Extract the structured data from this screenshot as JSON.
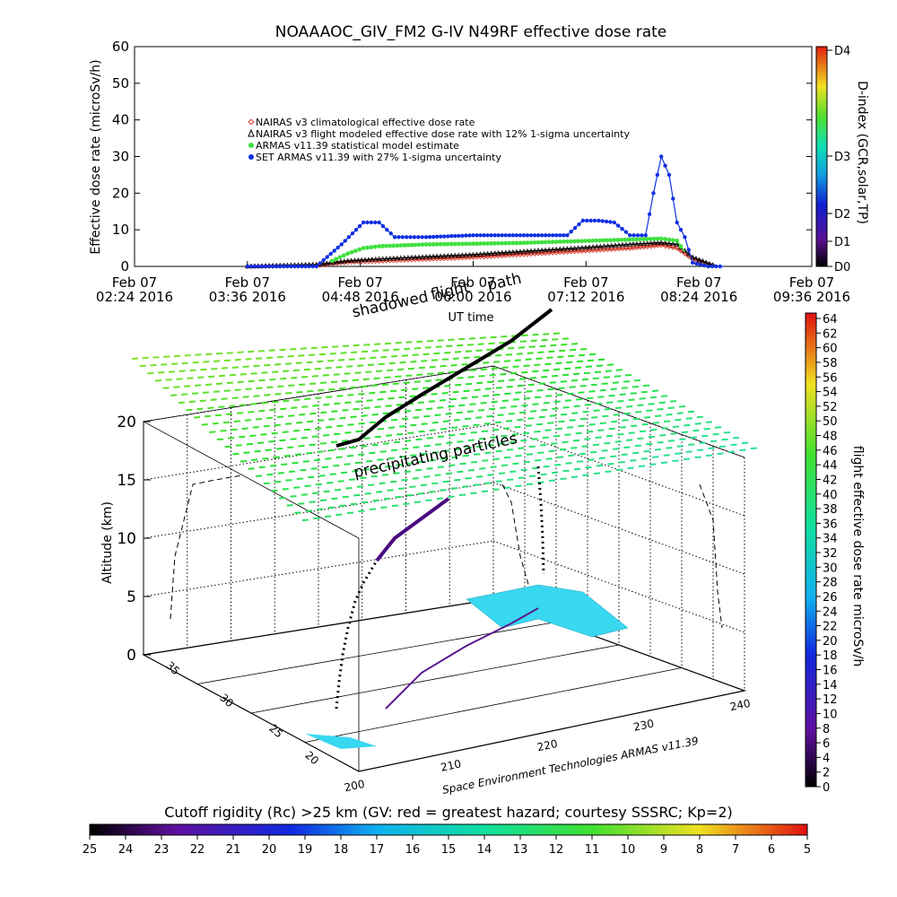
{
  "title": "NOAAAOC_GIV_FM2 G-IV   N49RF  effective dose rate",
  "colors": {
    "nairas_clim": "#d03020",
    "nairas_model": "#000000",
    "armas_stat": "#40e040",
    "set_armas": "#1030e0",
    "curtain": "#000000"
  },
  "chart_data": [
    {
      "type": "scatter",
      "ylabel": "Effective dose rate (microSv/h)",
      "xlabel": "UT time",
      "ylim": [
        0,
        60
      ],
      "yticks": [
        0,
        10,
        20,
        30,
        40,
        50,
        60
      ],
      "xlim": [
        "2016-02-07 02:24",
        "2016-02-07 09:36"
      ],
      "xticks": [
        {
          "t": "2016-02-07 02:24",
          "l1": "Feb 07",
          "l2": "02:24 2016"
        },
        {
          "t": "2016-02-07 03:36",
          "l1": "Feb 07",
          "l2": "03:36 2016"
        },
        {
          "t": "2016-02-07 04:48",
          "l1": "Feb 07",
          "l2": "04:48 2016"
        },
        {
          "t": "2016-02-07 06:00",
          "l1": "Feb 07",
          "l2": "06:00 2016"
        },
        {
          "t": "2016-02-07 07:12",
          "l1": "Feb 07",
          "l2": "07:12 2016"
        },
        {
          "t": "2016-02-07 08:24",
          "l1": "Feb 07",
          "l2": "08:24 2016"
        },
        {
          "t": "2016-02-07 09:36",
          "l1": "Feb 07",
          "l2": "09:36 2016"
        }
      ],
      "legend": [
        {
          "marker": "diamond",
          "label": "NAIRAS v3 climatological effective dose rate"
        },
        {
          "marker": "triangle",
          "label": "NAIRAS v3 flight modeled effective dose rate with 12% 1-sigma uncertainty"
        },
        {
          "marker": "star",
          "label": "ARMAS v11.39 statistical model estimate"
        },
        {
          "marker": "circle",
          "label": "SET ARMAS v11.39 with 27% 1-sigma uncertainty"
        }
      ],
      "legend_position": "top-left",
      "series": [
        {
          "name": "NAIRAS v3 climatological effective dose rate",
          "x": [
            "2016-02-07 03:36",
            "2016-02-07 04:20",
            "2016-02-07 04:40",
            "2016-02-07 05:00",
            "2016-02-07 06:00",
            "2016-02-07 07:00",
            "2016-02-07 07:40",
            "2016-02-07 08:00",
            "2016-02-07 08:10",
            "2016-02-07 08:20",
            "2016-02-07 08:35"
          ],
          "y": [
            0,
            0.3,
            1.2,
            1.5,
            2.5,
            4,
            5,
            5.8,
            5,
            2,
            0
          ]
        },
        {
          "name": "NAIRAS v3 flight modeled effective dose rate with 12% 1-sigma uncertainty",
          "x": [
            "2016-02-07 03:36",
            "2016-02-07 04:20",
            "2016-02-07 04:40",
            "2016-02-07 05:00",
            "2016-02-07 06:00",
            "2016-02-07 07:00",
            "2016-02-07 07:40",
            "2016-02-07 08:00",
            "2016-02-07 08:10",
            "2016-02-07 08:20",
            "2016-02-07 08:35"
          ],
          "y": [
            0,
            0.5,
            1.5,
            2,
            3.2,
            4.8,
            6,
            6.5,
            6,
            2.5,
            0
          ]
        },
        {
          "name": "ARMAS v11.39 statistical model estimate",
          "x": [
            "2016-02-07 04:30",
            "2016-02-07 04:40",
            "2016-02-07 04:50",
            "2016-02-07 05:00",
            "2016-02-07 05:30",
            "2016-02-07 06:00",
            "2016-02-07 06:30",
            "2016-02-07 07:00",
            "2016-02-07 07:30",
            "2016-02-07 08:00",
            "2016-02-07 08:10",
            "2016-02-07 08:15"
          ],
          "y": [
            1.5,
            3.5,
            5,
            5.5,
            6,
            6.2,
            6.4,
            6.8,
            7.2,
            7.6,
            7,
            4
          ]
        },
        {
          "name": "SET ARMAS v11.39 with 27% 1-sigma uncertainty",
          "x": [
            "2016-02-07 03:36",
            "2016-02-07 04:20",
            "2016-02-07 04:36",
            "2016-02-07 04:50",
            "2016-02-07 05:00",
            "2016-02-07 05:10",
            "2016-02-07 05:20",
            "2016-02-07 05:30",
            "2016-02-07 06:00",
            "2016-02-07 06:30",
            "2016-02-07 07:00",
            "2016-02-07 07:10",
            "2016-02-07 07:20",
            "2016-02-07 07:30",
            "2016-02-07 07:40",
            "2016-02-07 07:50",
            "2016-02-07 07:55",
            "2016-02-07 08:00",
            "2016-02-07 08:05",
            "2016-02-07 08:10",
            "2016-02-07 08:15",
            "2016-02-07 08:20",
            "2016-02-07 08:30",
            "2016-02-07 08:40"
          ],
          "y": [
            0,
            0,
            6,
            12,
            12,
            8,
            8,
            8,
            8.5,
            8.5,
            8.5,
            12.5,
            12.5,
            12,
            8.5,
            8.5,
            20,
            30,
            25,
            12,
            8,
            1,
            0,
            0
          ]
        }
      ],
      "right_axis": {
        "label": "D-index (GCR,solar,TP)",
        "ticks": [
          "D0",
          "D1",
          "D2",
          "D3",
          "D4"
        ]
      }
    },
    {
      "type": "scatter",
      "zlabel": "Altitude (km)",
      "zlim": [
        0,
        20
      ],
      "zticks": [
        0,
        5,
        10,
        15,
        20
      ],
      "xticks": [
        "200",
        "210",
        "220",
        "230",
        "240"
      ],
      "yticks": [
        "20",
        "25",
        "30",
        "35"
      ],
      "annotations": [
        "shadowed",
        "flight",
        "path",
        "precipitating particles"
      ],
      "colorbar": {
        "label": "flight effective dose rate microSv/h",
        "range": [
          0,
          64
        ],
        "ticks": [
          0,
          2,
          4,
          6,
          8,
          10,
          12,
          14,
          16,
          18,
          20,
          22,
          24,
          26,
          28,
          30,
          32,
          34,
          36,
          38,
          40,
          42,
          44,
          46,
          48,
          50,
          52,
          54,
          56,
          58,
          60,
          62,
          64
        ]
      },
      "bottom_colorbar": {
        "label": "Cutoff rigidity (Rc) >25 km (GV: red = greatest hazard; courtesy SSSRC; Kp=2)",
        "ticks": [
          25,
          24,
          23,
          22,
          21,
          20,
          19,
          18,
          17,
          16,
          15,
          14,
          13,
          12,
          11,
          10,
          9,
          8,
          7,
          6,
          5
        ]
      },
      "credit": "Space Environment Technologies ARMAS v11.39"
    }
  ]
}
